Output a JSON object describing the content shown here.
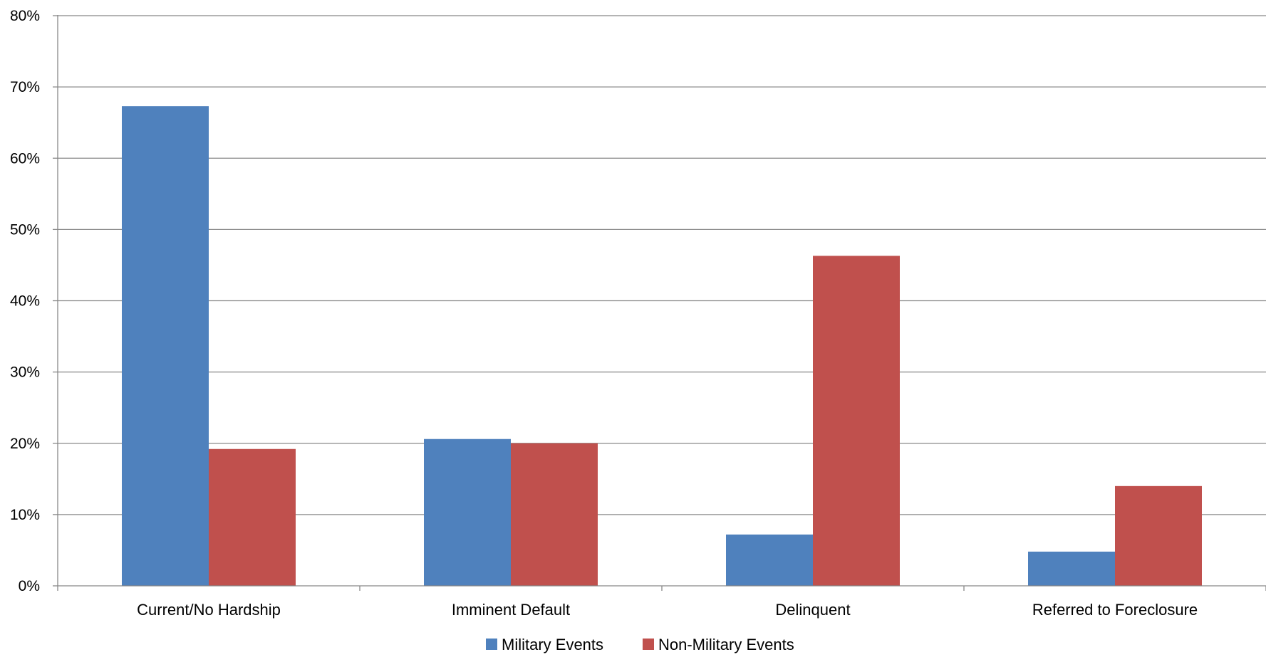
{
  "chart_data": {
    "type": "bar",
    "categories": [
      "Current/No Hardship",
      "Imminent Default",
      "Delinquent",
      "Referred to Foreclosure"
    ],
    "series": [
      {
        "name": "Military Events",
        "values": [
          67.3,
          20.6,
          7.2,
          4.8
        ],
        "color": "#4F81BD"
      },
      {
        "name": "Non-Military Events",
        "values": [
          19.2,
          20.0,
          46.3,
          14.0
        ],
        "color": "#C0504D"
      }
    ],
    "yticks": [
      "0%",
      "10%",
      "20%",
      "30%",
      "40%",
      "50%",
      "60%",
      "70%",
      "80%"
    ],
    "ylim": [
      0,
      80
    ],
    "grid": true,
    "legend_position": "bottom-center",
    "xlabel": "",
    "ylabel": ""
  }
}
